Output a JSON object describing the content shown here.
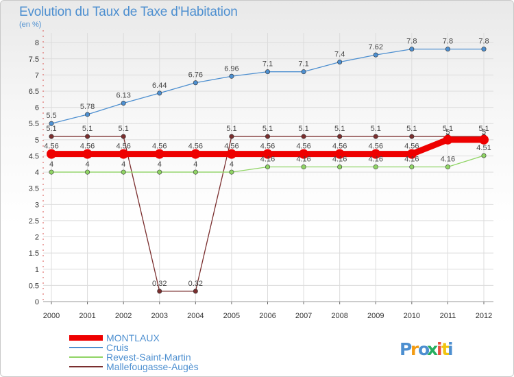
{
  "header": {
    "title": "Evolution du Taux de Taxe d'Habitation",
    "subtitle": "(en %)"
  },
  "logo": {
    "text": "Proxiti",
    "letter_colors": [
      "#4d8fd0",
      "#f39c12",
      "#4d8fd0",
      "#27ae60",
      "#e74c3c",
      "#f1c40f"
    ]
  },
  "chart_data": {
    "type": "line",
    "title": "Evolution du Taux de Taxe d'Habitation",
    "subtitle": "(en %)",
    "xlabel": "",
    "ylabel": "",
    "x": [
      "2000",
      "2001",
      "2002",
      "2003",
      "2004",
      "2005",
      "2006",
      "2007",
      "2008",
      "2009",
      "2010",
      "2011",
      "2012"
    ],
    "ylim": [
      0,
      8.3
    ],
    "y_ticks": [
      "0",
      "0.5",
      "1",
      "1.5",
      "2",
      "2.5",
      "3",
      "3.5",
      "4",
      "4.5",
      "5",
      "5.5",
      "6",
      "6.5",
      "7",
      "7.5",
      "8"
    ],
    "grid": true,
    "legend_position": "bottom-left",
    "series": [
      {
        "name": "Mallefougasse-Augès",
        "color": "#7a2e2e",
        "values": [
          5.1,
          5.1,
          5.1,
          0.32,
          0.32,
          5.1,
          5.1,
          5.1,
          5.1,
          5.1,
          5.1,
          5.1,
          5.1
        ],
        "labels": [
          "5.1",
          "5.1",
          "5.1",
          "0.32",
          "0.32",
          "5.1",
          "5.1",
          "5.1",
          "5.1",
          "5.1",
          "5.1",
          "5.1",
          "5.1"
        ]
      },
      {
        "name": "Revest-Saint-Martin",
        "color": "#8fd464",
        "values": [
          4,
          4,
          4,
          4,
          4,
          4,
          4.16,
          4.16,
          4.16,
          4.16,
          4.16,
          4.16,
          4.51
        ],
        "labels": [
          "4",
          "4",
          "4",
          "4",
          "4",
          "4",
          "4.16",
          "4.16",
          "4.16",
          "4.16",
          "4.16",
          "4.16",
          "4.51"
        ]
      },
      {
        "name": "Cruis",
        "color": "#4d8fd0",
        "values": [
          5.5,
          5.78,
          6.13,
          6.44,
          6.76,
          6.96,
          7.1,
          7.1,
          7.4,
          7.62,
          7.8,
          7.8,
          7.8
        ],
        "labels": [
          "5.5",
          "5.78",
          "6.13",
          "6.44",
          "6.76",
          "6.96",
          "7.1",
          "7.1",
          "7.4",
          "7.62",
          "7.8",
          "7.8",
          "7.8"
        ]
      },
      {
        "name": "MONTLAUX",
        "color": "#ee0000",
        "values": [
          4.56,
          4.56,
          4.56,
          4.56,
          4.56,
          4.56,
          4.56,
          4.56,
          4.56,
          4.56,
          4.56,
          5,
          5
        ],
        "labels": [
          "4.56",
          "4.56",
          "4.56",
          "4.56",
          "4.56",
          "4.56",
          "4.56",
          "4.56",
          "4.56",
          "4.56",
          "4.56",
          "5",
          "5"
        ]
      }
    ],
    "legend": [
      "MONTLAUX",
      "Cruis",
      "Revest-Saint-Martin",
      "Mallefougasse-Augès"
    ]
  }
}
